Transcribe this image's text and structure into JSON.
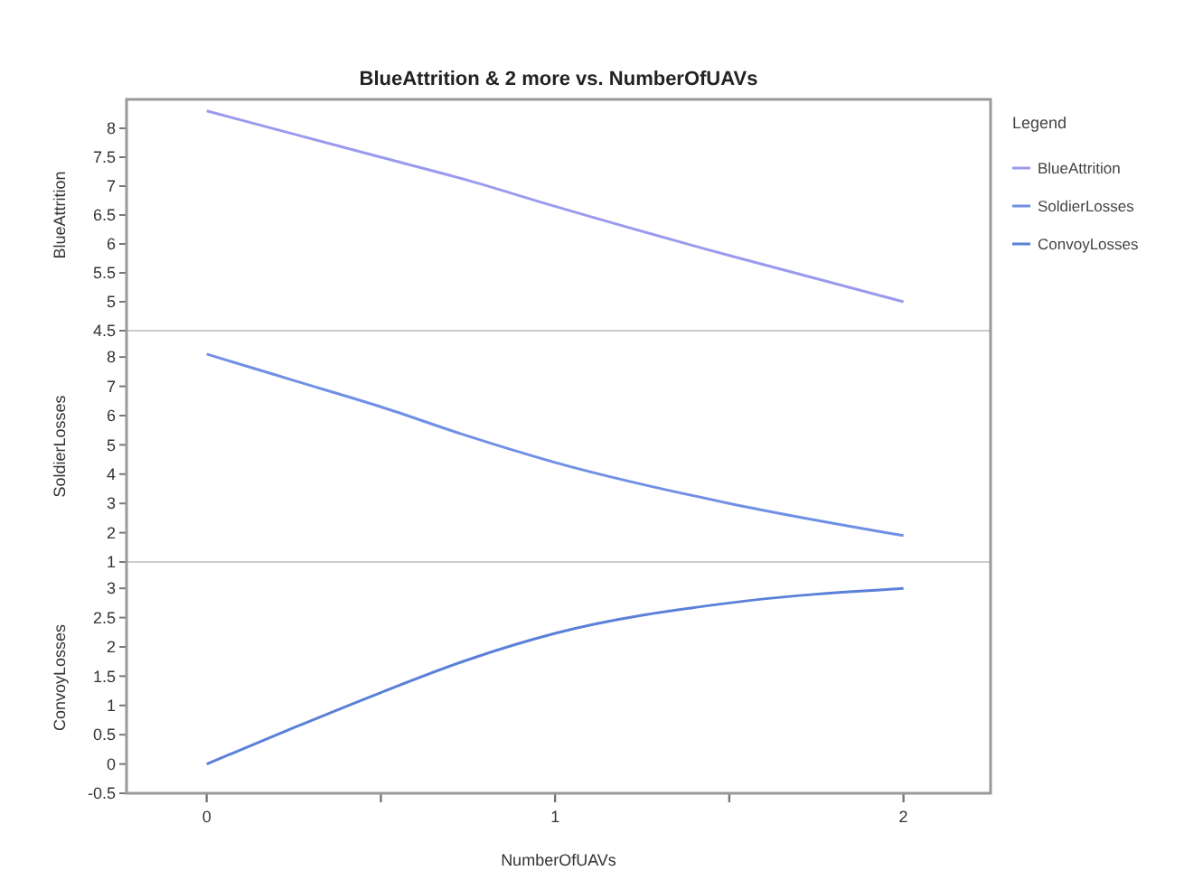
{
  "chart_data": [
    {
      "type": "line",
      "title": "BlueAttrition & 2 more vs. NumberOfUAVs",
      "ylabel": "BlueAttrition",
      "legend_title": "Legend",
      "legend": "right",
      "tick_labels": "y",
      "x": [
        0,
        0.25,
        0.5,
        0.75,
        1,
        1.5,
        2
      ],
      "xlim": [
        -0.23,
        2.25
      ],
      "ylim": [
        4.5,
        8.5
      ],
      "yticks": [
        4.5,
        5,
        5.5,
        6,
        6.5,
        7,
        7.5,
        8
      ],
      "series": [
        {
          "name": "BlueAttrition",
          "color": "#9a9aee",
          "values": [
            8.3,
            7.9,
            7.5,
            7.1,
            6.65,
            5.8,
            5.0
          ]
        }
      ]
    },
    {
      "type": "line",
      "ylabel": "SoldierLosses",
      "legend": "right",
      "tick_labels": "y",
      "x": [
        0,
        0.25,
        0.5,
        0.75,
        1,
        1.5,
        2
      ],
      "xlim": [
        -0.23,
        2.25
      ],
      "ylim": [
        1,
        8.9
      ],
      "yticks": [
        1,
        2,
        3,
        4,
        5,
        6,
        7,
        8
      ],
      "series": [
        {
          "name": "SoldierLosses",
          "color": "#7090e6",
          "values": [
            8.1,
            7.2,
            6.3,
            5.3,
            4.4,
            3.0,
            1.9
          ]
        }
      ]
    },
    {
      "type": "line",
      "ylabel": "ConvoyLosses",
      "xlabel": "NumberOfUAVs",
      "legend": "right",
      "x": [
        0,
        0.25,
        0.5,
        0.75,
        1,
        1.5,
        2
      ],
      "xlim": [
        -0.23,
        2.25
      ],
      "xticks": [
        0,
        {
          "value": 0.5,
          "label": null
        },
        1,
        {
          "value": 1.5,
          "label": null
        },
        2
      ],
      "ylim": [
        -0.5,
        3.45
      ],
      "yticks": [
        -0.5,
        0,
        0.5,
        1,
        1.5,
        2,
        2.5,
        3
      ],
      "series": [
        {
          "name": "ConvoyLosses",
          "color": "#5a80d8",
          "values": [
            0,
            0.62,
            1.22,
            1.78,
            2.23,
            2.75,
            3.0
          ]
        }
      ]
    }
  ]
}
